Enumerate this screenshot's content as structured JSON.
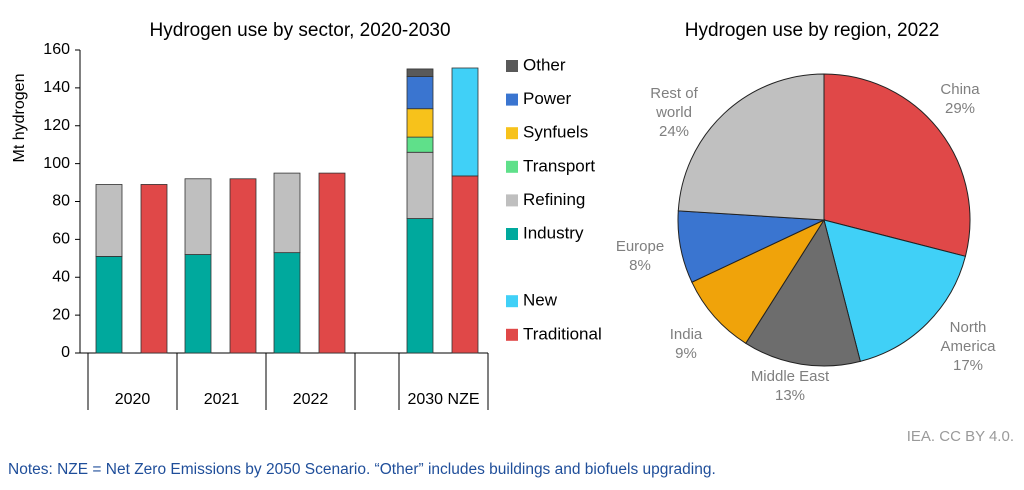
{
  "chart_data": [
    {
      "type": "bar",
      "title": "Hydrogen use by sector, 2020-2030",
      "y_label": "Mt hydrogen",
      "categories": [
        "2020",
        "2021",
        "2022",
        "2030 NZE"
      ],
      "ylim": [
        0,
        160
      ],
      "yticks": [
        0,
        20,
        40,
        60,
        80,
        100,
        120,
        140,
        160
      ],
      "series": [
        {
          "name": "Other",
          "color": "#595959",
          "stack": "left",
          "values": [
            null,
            null,
            null,
            4
          ]
        },
        {
          "name": "Power",
          "color": "#3a75d0",
          "stack": "left",
          "values": [
            null,
            null,
            null,
            17
          ]
        },
        {
          "name": "Synfuels",
          "color": "#f7c21b",
          "stack": "left",
          "values": [
            null,
            null,
            null,
            15
          ]
        },
        {
          "name": "Transport",
          "color": "#5fe08a",
          "stack": "left",
          "values": [
            null,
            null,
            null,
            8
          ]
        },
        {
          "name": "Refining",
          "color": "#bfbfbf",
          "stack": "left",
          "values": [
            38,
            40,
            42,
            35
          ]
        },
        {
          "name": "Industry",
          "color": "#00a99d",
          "stack": "left",
          "values": [
            51,
            52,
            53,
            71
          ]
        },
        {
          "name": "New",
          "color": "#40d0f7",
          "stack": "right",
          "values": [
            null,
            null,
            null,
            57
          ]
        },
        {
          "name": "Traditional",
          "color": "#e04848",
          "stack": "right",
          "values": [
            89,
            92,
            95,
            93.5
          ]
        }
      ]
    },
    {
      "type": "pie",
      "title": "Hydrogen use by region, 2022",
      "categories": [
        "China",
        "North America",
        "Middle East",
        "India",
        "Europe",
        "Rest of world"
      ],
      "values": [
        29,
        17,
        13,
        9,
        8,
        24
      ],
      "value_labels": [
        "29%",
        "17%",
        "13%",
        "9%",
        "8%",
        "24%"
      ],
      "colors": [
        "#e04848",
        "#40d0f7",
        "#6d6d6d",
        "#f0a30a",
        "#3a75d0",
        "#c0c0c0"
      ]
    }
  ],
  "source": "IEA. CC BY 4.0.",
  "notes": "Notes: NZE = Net Zero Emissions by 2050 Scenario. “Other” includes buildings and biofuels upgrading."
}
